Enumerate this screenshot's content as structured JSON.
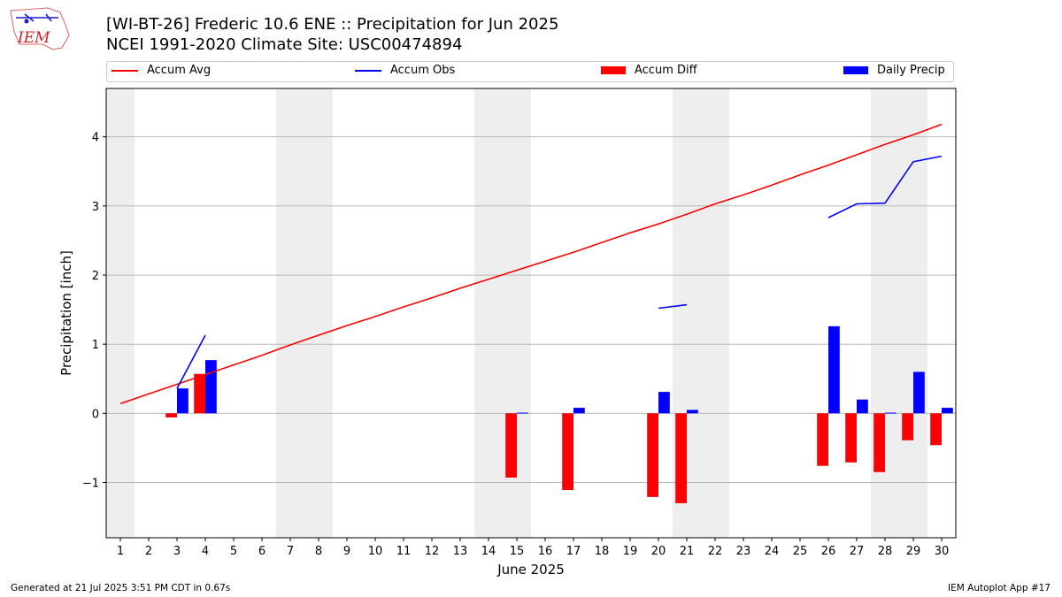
{
  "header": {
    "title_line1": "[WI-BT-26] Frederic 10.6 ENE :: Precipitation for Jun 2025",
    "title_line2": "NCEI 1991-2020 Climate Site: USC00474894",
    "logo_text": "IEM"
  },
  "footer": {
    "generated": "Generated at 21 Jul 2025 3:51 PM CDT in 0.67s",
    "app": "IEM Autoplot App #17"
  },
  "colors": {
    "avg": "#ff0000",
    "obs": "#0000ff",
    "diff": "#ff0000",
    "daily": "#0000ff",
    "weekend": "#eeeeee",
    "grid": "#b0b0b0"
  },
  "chart_data": {
    "type": "bar",
    "xlabel": "June 2025",
    "ylabel": "Precipitation [inch]",
    "ylim": [
      -1.8,
      4.7
    ],
    "yticks": [
      -1,
      0,
      1,
      2,
      3,
      4
    ],
    "ytick_labels": [
      "−1",
      "0",
      "1",
      "2",
      "3",
      "4"
    ],
    "grid": "horizontal",
    "legend": "top",
    "days": [
      1,
      2,
      3,
      4,
      5,
      6,
      7,
      8,
      9,
      10,
      11,
      12,
      13,
      14,
      15,
      16,
      17,
      18,
      19,
      20,
      21,
      22,
      23,
      24,
      25,
      26,
      27,
      28,
      29,
      30
    ],
    "weekend_days": [
      1,
      7,
      8,
      14,
      15,
      21,
      22,
      28,
      29
    ],
    "series": [
      {
        "name": "Accum Avg",
        "type": "line",
        "values": [
          0.14,
          0.28,
          0.42,
          0.56,
          0.7,
          0.84,
          0.99,
          1.13,
          1.27,
          1.4,
          1.54,
          1.67,
          1.81,
          1.94,
          2.07,
          2.2,
          2.33,
          2.47,
          2.61,
          2.74,
          2.88,
          3.03,
          3.16,
          3.3,
          3.45,
          3.59,
          3.74,
          3.89,
          4.03,
          4.18
        ]
      },
      {
        "name": "Accum Obs",
        "type": "line",
        "values": [
          null,
          null,
          0.36,
          1.13,
          null,
          null,
          null,
          null,
          null,
          null,
          null,
          null,
          null,
          null,
          null,
          null,
          null,
          null,
          null,
          1.52,
          1.57,
          null,
          null,
          null,
          null,
          2.83,
          3.03,
          3.04,
          3.64,
          3.72
        ]
      },
      {
        "name": "Accum Diff",
        "type": "bar",
        "values": [
          null,
          null,
          -0.06,
          0.57,
          null,
          null,
          null,
          null,
          null,
          null,
          null,
          null,
          null,
          null,
          -0.93,
          null,
          -1.11,
          null,
          null,
          -1.21,
          -1.3,
          null,
          null,
          null,
          null,
          -0.76,
          -0.71,
          -0.85,
          -0.39,
          -0.46
        ]
      },
      {
        "name": "Daily Precip",
        "type": "bar",
        "values": [
          null,
          null,
          0.36,
          0.77,
          null,
          null,
          null,
          null,
          null,
          null,
          null,
          null,
          null,
          null,
          0.01,
          null,
          0.08,
          null,
          null,
          0.31,
          0.05,
          null,
          null,
          null,
          null,
          1.26,
          0.2,
          0.01,
          0.6,
          0.08
        ]
      }
    ]
  }
}
